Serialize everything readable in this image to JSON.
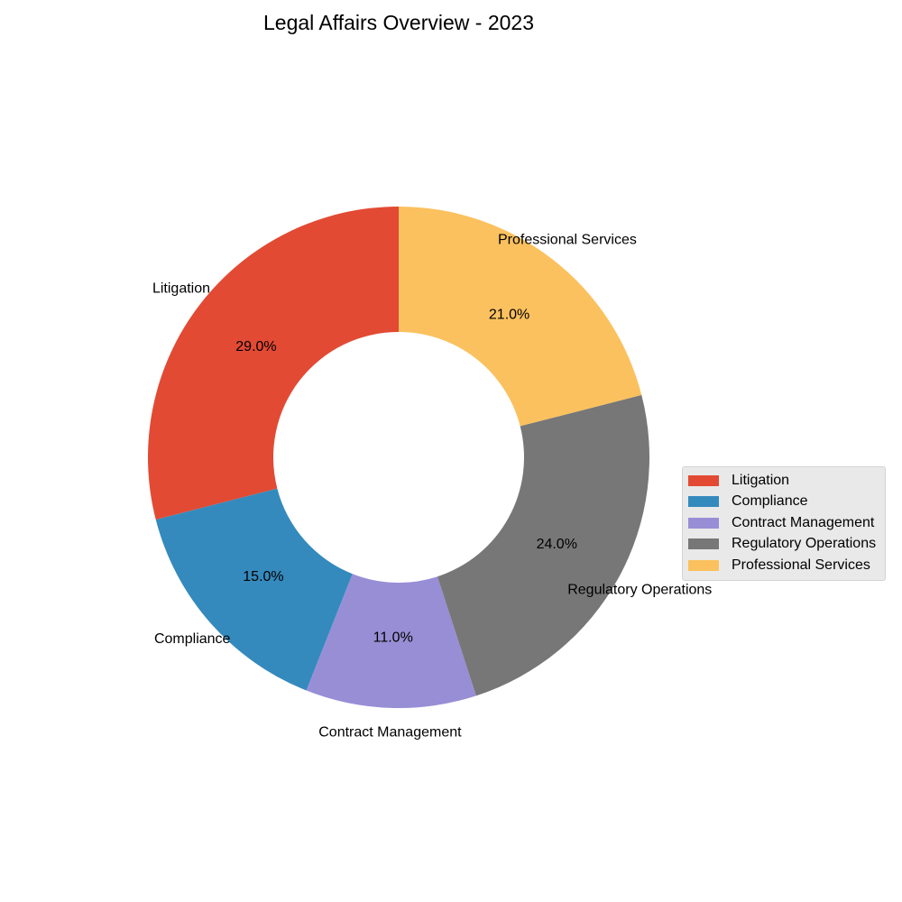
{
  "chart_data": {
    "type": "pie",
    "title": "Legal Affairs Overview - 2023",
    "donut": true,
    "start_angle_deg": 90,
    "direction": "counterclockwise",
    "categories": [
      "Litigation",
      "Compliance",
      "Contract Management",
      "Regulatory Operations",
      "Professional Services"
    ],
    "values": [
      29.0,
      15.0,
      11.0,
      24.0,
      21.0
    ],
    "value_labels": [
      "29.0%",
      "15.0%",
      "11.0%",
      "24.0%",
      "21.0%"
    ],
    "colors": [
      "#E24A33",
      "#348ABD",
      "#988ED5",
      "#777777",
      "#FBC15E"
    ],
    "legend": {
      "placement": "right",
      "entries": [
        "Litigation",
        "Compliance",
        "Contract Management",
        "Regulatory Operations",
        "Professional Services"
      ]
    }
  }
}
